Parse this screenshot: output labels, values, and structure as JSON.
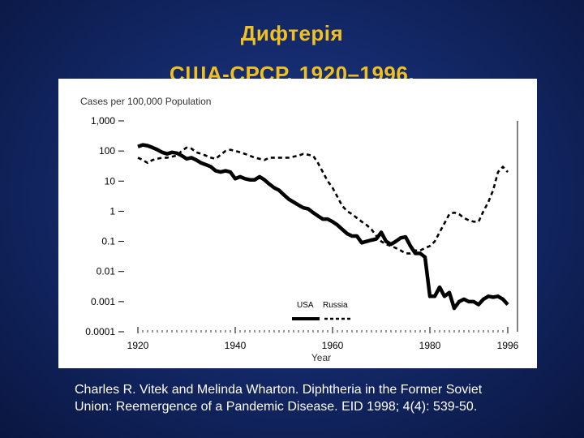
{
  "title_line1": "Дифтерія",
  "title_line2": "США-СРСР, 1920–1996.",
  "citation": {
    "line1": "Charles R. Vitek and Melinda Wharton. Diphtheria in the Former Soviet",
    "line2": "Union: Reemergence of a Pandemic Disease.  EID 1998; 4(4): 539-50."
  },
  "colors": {
    "title": "#f0c020",
    "background": "#142a6b",
    "panel": "#ffffff",
    "ink": "#000000"
  },
  "chart_data": {
    "type": "line",
    "y_unit_label": "Cases per 100,000 Population",
    "xlabel": "Year",
    "yscale": "log",
    "xlim": [
      1918,
      1998
    ],
    "ylim": [
      0.0001,
      1000
    ],
    "x_ticks": [
      1920,
      1940,
      1960,
      1980,
      1996
    ],
    "y_ticks": [
      {
        "value": 1000,
        "label": "1,000"
      },
      {
        "value": 100,
        "label": "100"
      },
      {
        "value": 10,
        "label": "10"
      },
      {
        "value": 1,
        "label": "1"
      },
      {
        "value": 0.1,
        "label": "0.1"
      },
      {
        "value": 0.01,
        "label": "0.01"
      },
      {
        "value": 0.001,
        "label": "0.001"
      },
      {
        "value": 0.0001,
        "label": "0.0001"
      }
    ],
    "legend": {
      "position": "bottom-right",
      "entries": [
        "USA",
        "Russia"
      ]
    },
    "grid": false,
    "series": [
      {
        "name": "USA",
        "style": "solid",
        "points": [
          [
            1920,
            140
          ],
          [
            1921,
            160
          ],
          [
            1922,
            150
          ],
          [
            1923,
            130
          ],
          [
            1924,
            110
          ],
          [
            1925,
            90
          ],
          [
            1926,
            80
          ],
          [
            1927,
            90
          ],
          [
            1928,
            85
          ],
          [
            1929,
            70
          ],
          [
            1930,
            55
          ],
          [
            1931,
            60
          ],
          [
            1932,
            50
          ],
          [
            1933,
            40
          ],
          [
            1934,
            35
          ],
          [
            1935,
            30
          ],
          [
            1936,
            22
          ],
          [
            1937,
            20
          ],
          [
            1938,
            22
          ],
          [
            1939,
            20
          ],
          [
            1940,
            12
          ],
          [
            1941,
            14
          ],
          [
            1942,
            12
          ],
          [
            1943,
            11
          ],
          [
            1944,
            11
          ],
          [
            1945,
            14
          ],
          [
            1946,
            11
          ],
          [
            1947,
            8
          ],
          [
            1948,
            6
          ],
          [
            1949,
            5
          ],
          [
            1950,
            3.5
          ],
          [
            1951,
            2.5
          ],
          [
            1952,
            2
          ],
          [
            1953,
            1.6
          ],
          [
            1954,
            1.3
          ],
          [
            1955,
            1.2
          ],
          [
            1956,
            0.9
          ],
          [
            1957,
            0.7
          ],
          [
            1958,
            0.55
          ],
          [
            1959,
            0.55
          ],
          [
            1960,
            0.45
          ],
          [
            1961,
            0.35
          ],
          [
            1962,
            0.25
          ],
          [
            1963,
            0.18
          ],
          [
            1964,
            0.15
          ],
          [
            1965,
            0.15
          ],
          [
            1966,
            0.09
          ],
          [
            1967,
            0.1
          ],
          [
            1968,
            0.11
          ],
          [
            1969,
            0.12
          ],
          [
            1970,
            0.2
          ],
          [
            1971,
            0.1
          ],
          [
            1972,
            0.08
          ],
          [
            1973,
            0.1
          ],
          [
            1974,
            0.13
          ],
          [
            1975,
            0.14
          ],
          [
            1976,
            0.07
          ],
          [
            1977,
            0.04
          ],
          [
            1978,
            0.04
          ],
          [
            1979,
            0.03
          ],
          [
            1980,
            0.0015
          ],
          [
            1981,
            0.0015
          ],
          [
            1982,
            0.003
          ],
          [
            1983,
            0.0015
          ],
          [
            1984,
            0.002
          ],
          [
            1985,
            0.0006
          ],
          [
            1986,
            0.001
          ],
          [
            1987,
            0.0012
          ],
          [
            1988,
            0.001
          ],
          [
            1989,
            0.001
          ],
          [
            1990,
            0.0008
          ],
          [
            1991,
            0.0012
          ],
          [
            1992,
            0.0015
          ],
          [
            1993,
            0.0014
          ],
          [
            1994,
            0.0015
          ],
          [
            1995,
            0.0012
          ],
          [
            1996,
            0.0008
          ]
        ]
      },
      {
        "name": "Russia",
        "style": "dashed",
        "points": [
          [
            1920,
            60
          ],
          [
            1921,
            50
          ],
          [
            1922,
            40
          ],
          [
            1923,
            50
          ],
          [
            1924,
            55
          ],
          [
            1925,
            60
          ],
          [
            1926,
            60
          ],
          [
            1927,
            65
          ],
          [
            1928,
            70
          ],
          [
            1929,
            100
          ],
          [
            1930,
            130
          ],
          [
            1931,
            120
          ],
          [
            1932,
            90
          ],
          [
            1933,
            80
          ],
          [
            1934,
            70
          ],
          [
            1935,
            60
          ],
          [
            1936,
            55
          ],
          [
            1937,
            75
          ],
          [
            1938,
            100
          ],
          [
            1939,
            110
          ],
          [
            1940,
            100
          ],
          [
            1941,
            90
          ],
          [
            1942,
            80
          ],
          [
            1943,
            70
          ],
          [
            1944,
            60
          ],
          [
            1945,
            55
          ],
          [
            1946,
            50
          ],
          [
            1947,
            60
          ],
          [
            1948,
            60
          ],
          [
            1949,
            60
          ],
          [
            1950,
            60
          ],
          [
            1951,
            60
          ],
          [
            1952,
            65
          ],
          [
            1953,
            70
          ],
          [
            1954,
            80
          ],
          [
            1955,
            75
          ],
          [
            1956,
            70
          ],
          [
            1957,
            40
          ],
          [
            1958,
            20
          ],
          [
            1959,
            10
          ],
          [
            1960,
            6
          ],
          [
            1961,
            3
          ],
          [
            1962,
            1.5
          ],
          [
            1963,
            1
          ],
          [
            1964,
            0.8
          ],
          [
            1965,
            0.6
          ],
          [
            1966,
            0.45
          ],
          [
            1967,
            0.35
          ],
          [
            1968,
            0.25
          ],
          [
            1969,
            0.15
          ],
          [
            1970,
            0.1
          ],
          [
            1971,
            0.08
          ],
          [
            1972,
            0.07
          ],
          [
            1973,
            0.06
          ],
          [
            1974,
            0.05
          ],
          [
            1975,
            0.04
          ],
          [
            1976,
            0.04
          ],
          [
            1977,
            0.05
          ],
          [
            1978,
            0.05
          ],
          [
            1979,
            0.06
          ],
          [
            1980,
            0.07
          ],
          [
            1981,
            0.1
          ],
          [
            1982,
            0.2
          ],
          [
            1983,
            0.4
          ],
          [
            1984,
            0.8
          ],
          [
            1985,
            0.9
          ],
          [
            1986,
            0.8
          ],
          [
            1987,
            0.6
          ],
          [
            1988,
            0.5
          ],
          [
            1989,
            0.45
          ],
          [
            1990,
            0.45
          ],
          [
            1991,
            1
          ],
          [
            1992,
            2
          ],
          [
            1993,
            5
          ],
          [
            1994,
            20
          ],
          [
            1995,
            30
          ],
          [
            1996,
            20
          ]
        ]
      }
    ]
  }
}
